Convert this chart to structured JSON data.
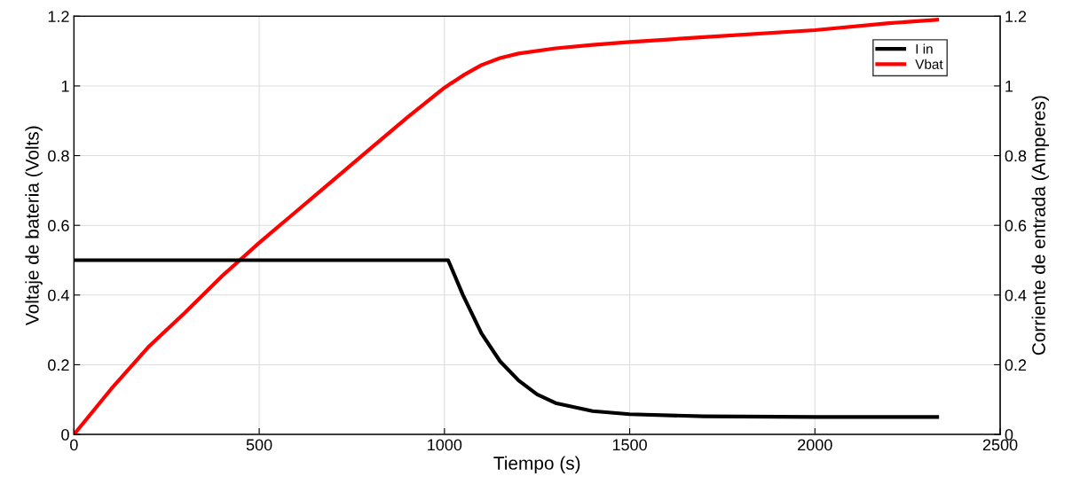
{
  "chart_data": {
    "type": "line",
    "xlabel": "Tiempo (s)",
    "ylabel": "Voltaje de bateria (Volts)",
    "y2label": "Corriente de entrada (Amperes)",
    "xlim": [
      0,
      2500
    ],
    "xticks": [
      0,
      500,
      1000,
      1500,
      2000,
      2500
    ],
    "ylim": [
      0,
      1.2
    ],
    "yticks": [
      0,
      0.2,
      0.4,
      0.6,
      0.8,
      1,
      1.2
    ],
    "y2lim": [
      0,
      1.2
    ],
    "y2ticks": [
      0,
      0.2,
      0.4,
      0.6,
      0.8,
      1,
      1.2
    ],
    "grid": true,
    "legend": "top right",
    "marker": "none",
    "line_style": "solid",
    "series": [
      {
        "name": "I in",
        "color": "#000000",
        "axis": "y2",
        "x": [
          0,
          500,
          1000,
          1010,
          1050,
          1100,
          1150,
          1200,
          1250,
          1300,
          1400,
          1500,
          1700,
          2000,
          2330
        ],
        "values": [
          0.5,
          0.5,
          0.5,
          0.5,
          0.4,
          0.29,
          0.21,
          0.155,
          0.115,
          0.09,
          0.067,
          0.058,
          0.052,
          0.05,
          0.05
        ]
      },
      {
        "name": "Vbat",
        "color": "#ff0000",
        "x": [
          0,
          100,
          200,
          300,
          400,
          500,
          600,
          700,
          800,
          900,
          1000,
          1050,
          1100,
          1150,
          1200,
          1300,
          1400,
          1500,
          1700,
          2000,
          2200,
          2330
        ],
        "values": [
          0,
          0.13,
          0.25,
          0.35,
          0.455,
          0.55,
          0.64,
          0.73,
          0.82,
          0.91,
          0.995,
          1.03,
          1.06,
          1.08,
          1.093,
          1.108,
          1.118,
          1.126,
          1.14,
          1.16,
          1.18,
          1.19
        ]
      }
    ]
  }
}
